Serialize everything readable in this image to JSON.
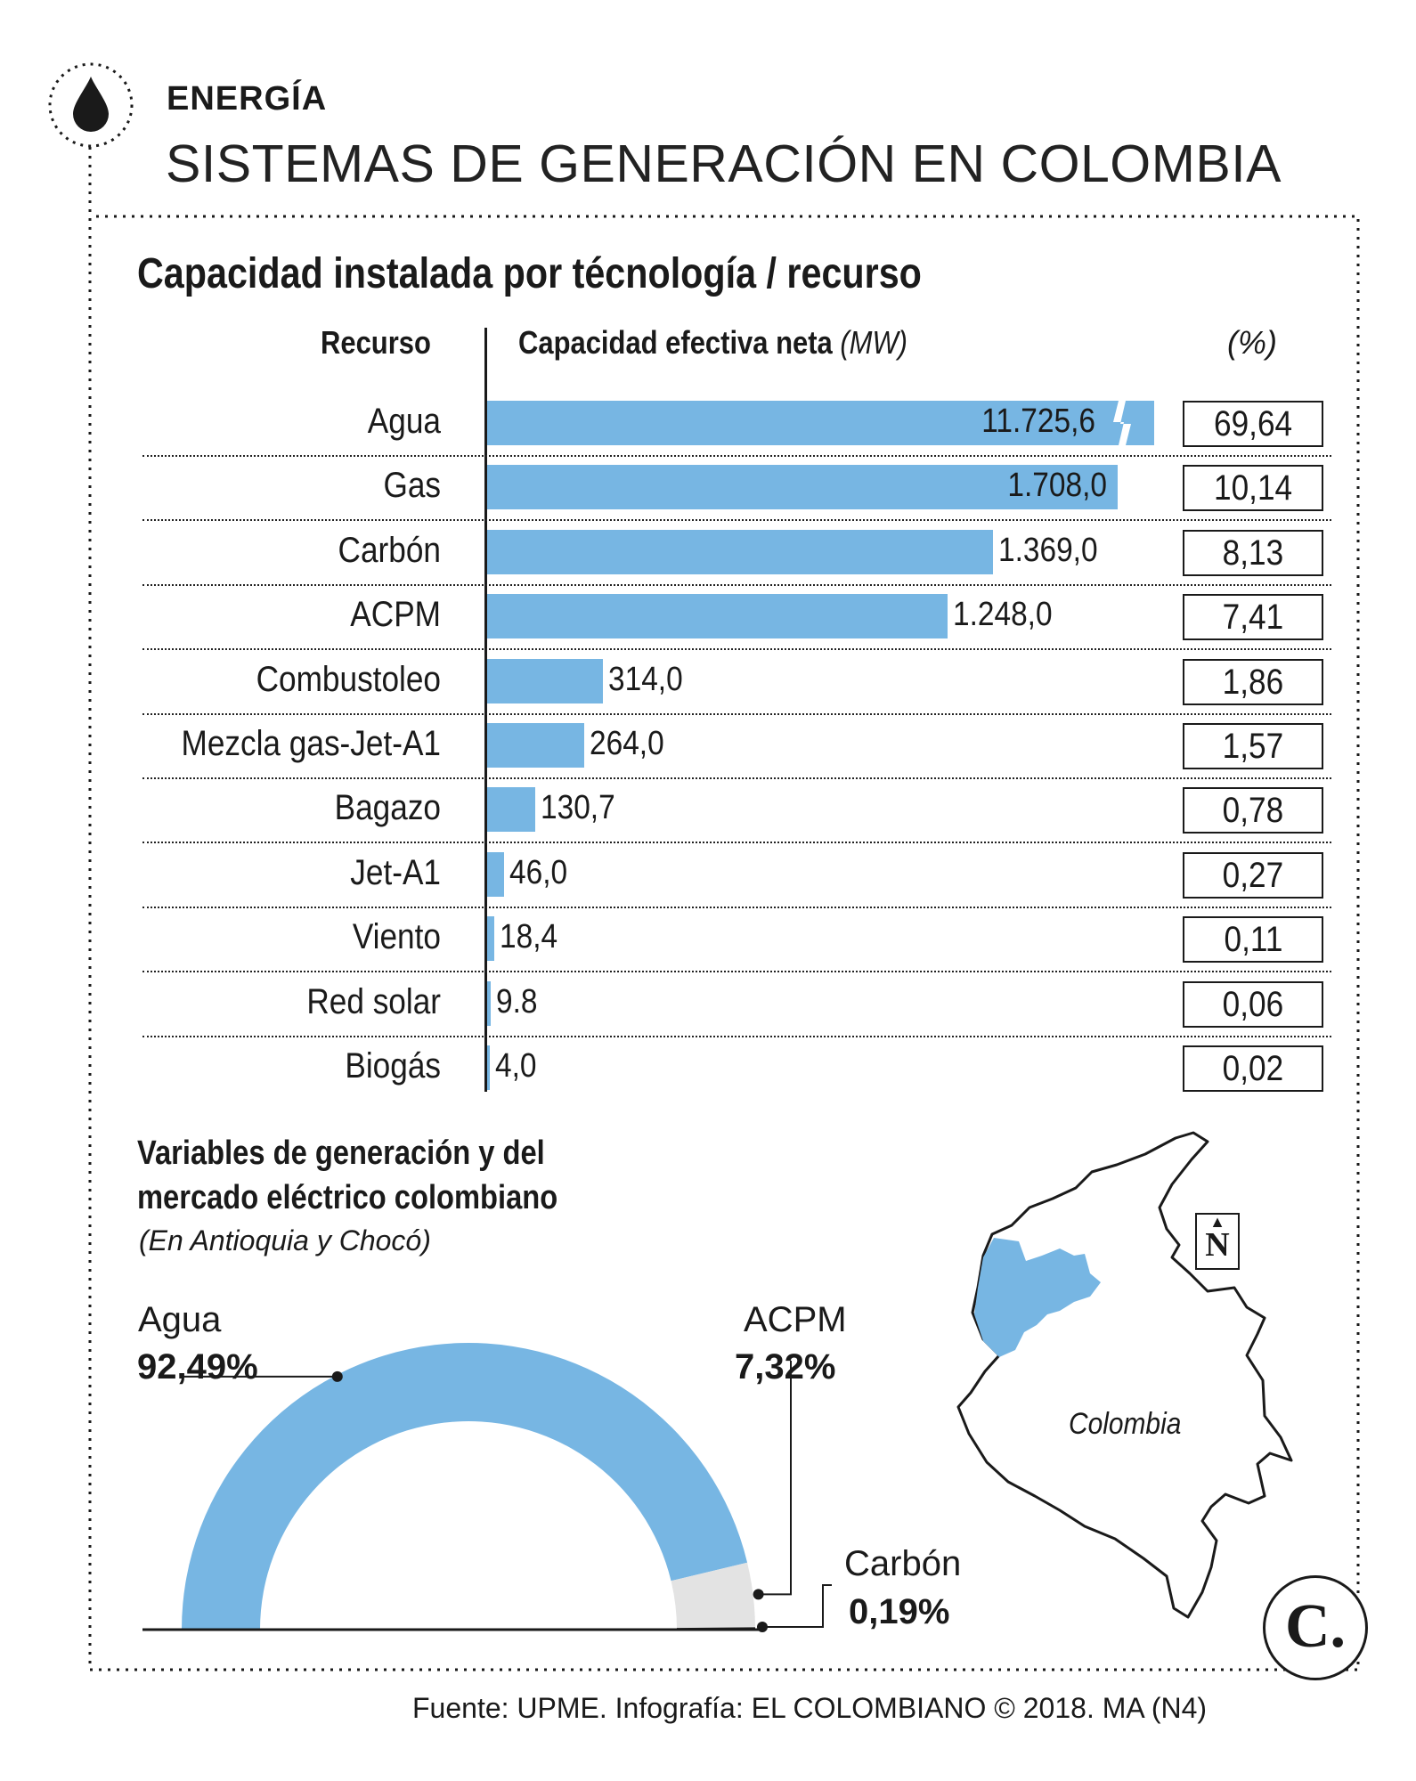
{
  "header": {
    "section": "ENERGÍA",
    "title": "SISTEMAS DE GENERACIÓN EN COLOMBIA"
  },
  "chart_data": [
    {
      "type": "bar",
      "title": "Capacidad instalada por técnología / recurso",
      "category_header": "Recurso",
      "value_header": "Capacidad efectiva neta",
      "value_unit": "(MW)",
      "percent_header": "(%)",
      "categories": [
        "Agua",
        "Gas",
        "Carbón",
        "ACPM",
        "Combustoleo",
        "Mezcla gas-Jet-A1",
        "Bagazo",
        "Jet-A1",
        "Viento",
        "Red solar",
        "Biogás"
      ],
      "values": [
        11725.6,
        1708.0,
        1369.0,
        1248.0,
        314.0,
        264.0,
        130.7,
        46.0,
        18.4,
        9.8,
        4.0
      ],
      "value_labels": [
        "11.725,6",
        "1.708,0",
        "1.369,0",
        "1.248,0",
        "314,0",
        "264,0",
        "130,7",
        "46,0",
        "18,4",
        "9.8",
        "4,0"
      ],
      "percent_labels": [
        "69,64",
        "10,14",
        "8,13",
        "7,41",
        "1,86",
        "1,57",
        "0,78",
        "0,27",
        "0,11",
        "0,06",
        "0,02"
      ],
      "broken_axis_category": "Agua",
      "bar_color": "#77b6e3"
    },
    {
      "type": "pie",
      "style": "half-donut",
      "title": "Variables de generación y del mercado eléctrico colombiano",
      "subtitle": "(En Antioquia y Chocó)",
      "slices": [
        {
          "name": "Agua",
          "value": 92.49,
          "label": "92,49%",
          "color": "#77b6e3"
        },
        {
          "name": "ACPM",
          "value": 7.32,
          "label": "7,32%",
          "color": "#e3e3e3"
        },
        {
          "name": "Carbón",
          "value": 0.19,
          "label": "0,19%",
          "color": "#1a1a1a"
        }
      ]
    }
  ],
  "map": {
    "label": "Colombia",
    "north": "N",
    "highlight_color": "#77b6e3"
  },
  "logo": {
    "letter": "C."
  },
  "footer": {
    "source": "Fuente: UPME. Infografía: EL COLOMBIANO © 2018. MA (N4)"
  }
}
